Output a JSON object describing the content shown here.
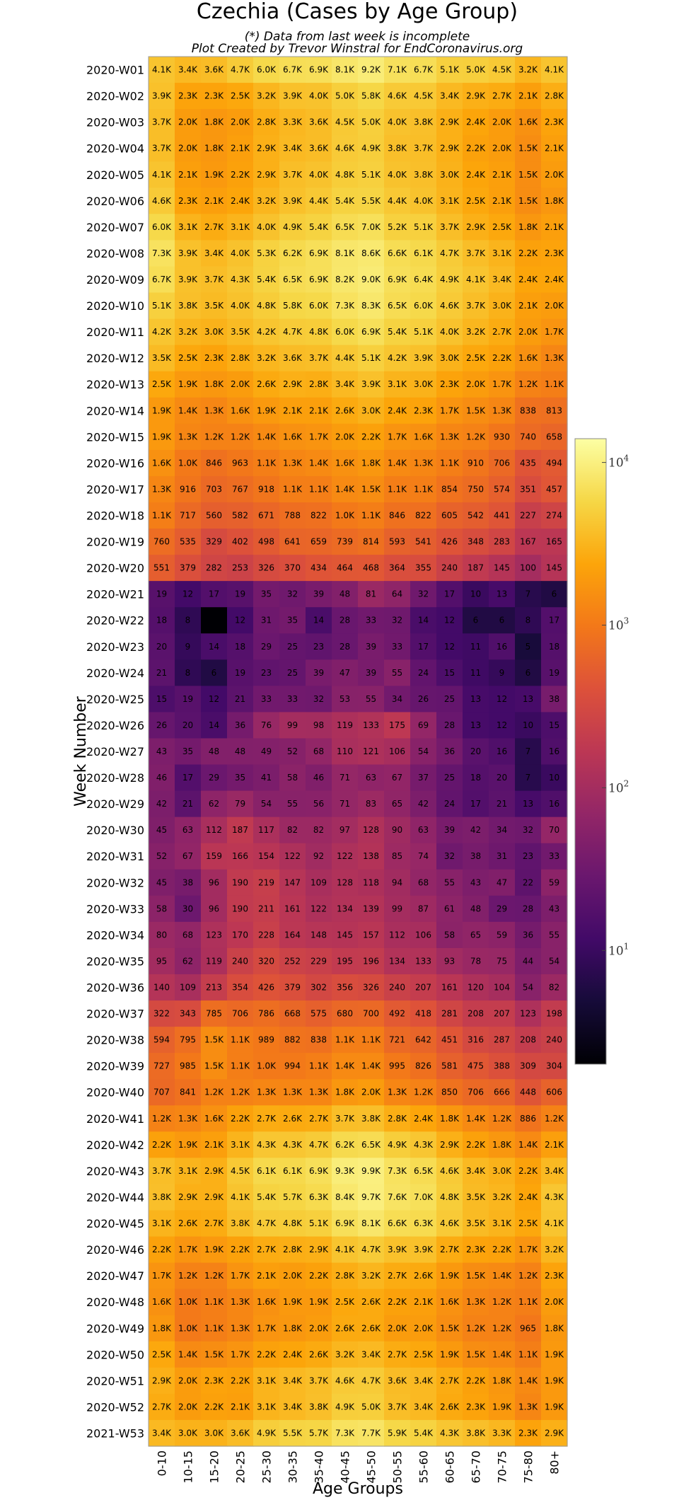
{
  "chart_data": {
    "type": "heatmap",
    "title": "Czechia (Cases by Age Group)",
    "subtitle_lines": [
      "(*) Data from last week is incomplete",
      "Plot Created by Trevor Winstral for EndCoronavirus.org"
    ],
    "xlabel": "Age Groups",
    "ylabel": "Week Number",
    "color_scale": "log",
    "colormap": "inferno",
    "colorbar_ticks": [
      "10^1",
      "10^2",
      "10^3",
      "10^4"
    ],
    "colorbar_range": [
      2,
      14000
    ],
    "x_categories": [
      "0-10",
      "10-15",
      "15-20",
      "20-25",
      "25-30",
      "30-35",
      "35-40",
      "40-45",
      "45-50",
      "50-55",
      "55-60",
      "60-65",
      "65-70",
      "70-75",
      "75-80",
      "80+"
    ],
    "y_categories": [
      "2020-W01",
      "2020-W02",
      "2020-W03",
      "2020-W04",
      "2020-W05",
      "2020-W06",
      "2020-W07",
      "2020-W08",
      "2020-W09",
      "2020-W10",
      "2020-W11",
      "2020-W12",
      "2020-W13",
      "2020-W14",
      "2020-W15",
      "2020-W16",
      "2020-W17",
      "2020-W18",
      "2020-W19",
      "2020-W20",
      "2020-W21",
      "2020-W22",
      "2020-W23",
      "2020-W24",
      "2020-W25",
      "2020-W26",
      "2020-W27",
      "2020-W28",
      "2020-W29",
      "2020-W30",
      "2020-W31",
      "2020-W32",
      "2020-W33",
      "2020-W34",
      "2020-W35",
      "2020-W36",
      "2020-W37",
      "2020-W38",
      "2020-W39",
      "2020-W40",
      "2020-W41",
      "2020-W42",
      "2020-W43",
      "2020-W44",
      "2020-W45",
      "2020-W46",
      "2020-W47",
      "2020-W48",
      "2020-W49",
      "2020-W50",
      "2020-W51",
      "2020-W52",
      "2021-W53"
    ],
    "labels": [
      [
        "4.1K",
        "3.4K",
        "3.6K",
        "4.7K",
        "6.0K",
        "6.7K",
        "6.9K",
        "8.1K",
        "9.2K",
        "7.1K",
        "6.7K",
        "5.1K",
        "5.0K",
        "4.5K",
        "3.2K",
        "4.1K"
      ],
      [
        "3.9K",
        "2.3K",
        "2.3K",
        "2.5K",
        "3.2K",
        "3.9K",
        "4.0K",
        "5.0K",
        "5.8K",
        "4.6K",
        "4.5K",
        "3.4K",
        "2.9K",
        "2.7K",
        "2.1K",
        "2.8K"
      ],
      [
        "3.7K",
        "2.0K",
        "1.8K",
        "2.0K",
        "2.8K",
        "3.3K",
        "3.6K",
        "4.5K",
        "5.0K",
        "4.0K",
        "3.8K",
        "2.9K",
        "2.4K",
        "2.0K",
        "1.6K",
        "2.3K"
      ],
      [
        "3.7K",
        "2.0K",
        "1.8K",
        "2.1K",
        "2.9K",
        "3.4K",
        "3.6K",
        "4.6K",
        "4.9K",
        "3.8K",
        "3.7K",
        "2.9K",
        "2.2K",
        "2.0K",
        "1.5K",
        "2.1K"
      ],
      [
        "4.1K",
        "2.1K",
        "1.9K",
        "2.2K",
        "2.9K",
        "3.7K",
        "4.0K",
        "4.8K",
        "5.1K",
        "4.0K",
        "3.8K",
        "3.0K",
        "2.4K",
        "2.1K",
        "1.5K",
        "2.0K"
      ],
      [
        "4.6K",
        "2.3K",
        "2.1K",
        "2.4K",
        "3.2K",
        "3.9K",
        "4.4K",
        "5.4K",
        "5.5K",
        "4.4K",
        "4.0K",
        "3.1K",
        "2.5K",
        "2.1K",
        "1.5K",
        "1.8K"
      ],
      [
        "6.0K",
        "3.1K",
        "2.7K",
        "3.1K",
        "4.0K",
        "4.9K",
        "5.4K",
        "6.5K",
        "7.0K",
        "5.2K",
        "5.1K",
        "3.7K",
        "2.9K",
        "2.5K",
        "1.8K",
        "2.1K"
      ],
      [
        "7.3K",
        "3.9K",
        "3.4K",
        "4.0K",
        "5.3K",
        "6.2K",
        "6.9K",
        "8.1K",
        "8.6K",
        "6.6K",
        "6.1K",
        "4.7K",
        "3.7K",
        "3.1K",
        "2.2K",
        "2.3K"
      ],
      [
        "6.7K",
        "3.9K",
        "3.7K",
        "4.3K",
        "5.4K",
        "6.5K",
        "6.9K",
        "8.2K",
        "9.0K",
        "6.9K",
        "6.4K",
        "4.9K",
        "4.1K",
        "3.4K",
        "2.4K",
        "2.4K"
      ],
      [
        "5.1K",
        "3.8K",
        "3.5K",
        "4.0K",
        "4.8K",
        "5.8K",
        "6.0K",
        "7.3K",
        "8.3K",
        "6.5K",
        "6.0K",
        "4.6K",
        "3.7K",
        "3.0K",
        "2.1K",
        "2.0K"
      ],
      [
        "4.2K",
        "3.2K",
        "3.0K",
        "3.5K",
        "4.2K",
        "4.7K",
        "4.8K",
        "6.0K",
        "6.9K",
        "5.4K",
        "5.1K",
        "4.0K",
        "3.2K",
        "2.7K",
        "2.0K",
        "1.7K"
      ],
      [
        "3.5K",
        "2.5K",
        "2.3K",
        "2.8K",
        "3.2K",
        "3.6K",
        "3.7K",
        "4.4K",
        "5.1K",
        "4.2K",
        "3.9K",
        "3.0K",
        "2.5K",
        "2.2K",
        "1.6K",
        "1.3K"
      ],
      [
        "2.5K",
        "1.9K",
        "1.8K",
        "2.0K",
        "2.6K",
        "2.9K",
        "2.8K",
        "3.4K",
        "3.9K",
        "3.1K",
        "3.0K",
        "2.3K",
        "2.0K",
        "1.7K",
        "1.2K",
        "1.1K"
      ],
      [
        "1.9K",
        "1.4K",
        "1.3K",
        "1.6K",
        "1.9K",
        "2.1K",
        "2.1K",
        "2.6K",
        "3.0K",
        "2.4K",
        "2.3K",
        "1.7K",
        "1.5K",
        "1.3K",
        "838",
        "813"
      ],
      [
        "1.9K",
        "1.3K",
        "1.2K",
        "1.2K",
        "1.4K",
        "1.6K",
        "1.7K",
        "2.0K",
        "2.2K",
        "1.7K",
        "1.6K",
        "1.3K",
        "1.2K",
        "930",
        "740",
        "658"
      ],
      [
        "1.6K",
        "1.0K",
        "846",
        "963",
        "1.1K",
        "1.3K",
        "1.4K",
        "1.6K",
        "1.8K",
        "1.4K",
        "1.3K",
        "1.1K",
        "910",
        "706",
        "435",
        "494"
      ],
      [
        "1.3K",
        "916",
        "703",
        "767",
        "918",
        "1.1K",
        "1.1K",
        "1.4K",
        "1.5K",
        "1.1K",
        "1.1K",
        "854",
        "750",
        "574",
        "351",
        "457"
      ],
      [
        "1.1K",
        "717",
        "560",
        "582",
        "671",
        "788",
        "822",
        "1.0K",
        "1.1K",
        "846",
        "822",
        "605",
        "542",
        "441",
        "227",
        "274"
      ],
      [
        "760",
        "535",
        "329",
        "402",
        "498",
        "641",
        "659",
        "739",
        "814",
        "593",
        "541",
        "426",
        "348",
        "283",
        "167",
        "165"
      ],
      [
        "551",
        "379",
        "282",
        "253",
        "326",
        "370",
        "434",
        "464",
        "468",
        "364",
        "355",
        "240",
        "187",
        "145",
        "100",
        "145"
      ],
      [
        "19",
        "12",
        "17",
        "19",
        "35",
        "32",
        "39",
        "48",
        "81",
        "64",
        "32",
        "17",
        "10",
        "13",
        "7",
        "6"
      ],
      [
        "18",
        "8",
        "",
        "12",
        "31",
        "35",
        "14",
        "28",
        "33",
        "32",
        "14",
        "12",
        "6",
        "6",
        "8",
        "17"
      ],
      [
        "20",
        "9",
        "14",
        "18",
        "29",
        "25",
        "23",
        "28",
        "39",
        "33",
        "17",
        "12",
        "11",
        "16",
        "5",
        "18"
      ],
      [
        "21",
        "8",
        "6",
        "19",
        "23",
        "25",
        "39",
        "47",
        "39",
        "55",
        "24",
        "15",
        "11",
        "9",
        "6",
        "19"
      ],
      [
        "15",
        "19",
        "12",
        "21",
        "33",
        "33",
        "32",
        "53",
        "55",
        "34",
        "26",
        "25",
        "13",
        "12",
        "13",
        "38"
      ],
      [
        "26",
        "20",
        "14",
        "36",
        "76",
        "99",
        "98",
        "119",
        "133",
        "175",
        "69",
        "28",
        "13",
        "12",
        "10",
        "15"
      ],
      [
        "43",
        "35",
        "48",
        "48",
        "49",
        "52",
        "68",
        "110",
        "121",
        "106",
        "54",
        "36",
        "20",
        "16",
        "7",
        "16"
      ],
      [
        "46",
        "17",
        "29",
        "35",
        "41",
        "58",
        "46",
        "71",
        "63",
        "67",
        "37",
        "25",
        "18",
        "20",
        "7",
        "10"
      ],
      [
        "42",
        "21",
        "62",
        "79",
        "54",
        "55",
        "56",
        "71",
        "83",
        "65",
        "42",
        "24",
        "17",
        "21",
        "13",
        "16"
      ],
      [
        "45",
        "63",
        "112",
        "187",
        "117",
        "82",
        "82",
        "97",
        "128",
        "90",
        "63",
        "39",
        "42",
        "34",
        "32",
        "70"
      ],
      [
        "52",
        "67",
        "159",
        "166",
        "154",
        "122",
        "92",
        "122",
        "138",
        "85",
        "74",
        "32",
        "38",
        "31",
        "23",
        "33"
      ],
      [
        "45",
        "38",
        "96",
        "190",
        "219",
        "147",
        "109",
        "128",
        "118",
        "94",
        "68",
        "55",
        "43",
        "47",
        "22",
        "59"
      ],
      [
        "58",
        "30",
        "96",
        "190",
        "211",
        "161",
        "122",
        "134",
        "139",
        "99",
        "87",
        "61",
        "48",
        "29",
        "28",
        "43"
      ],
      [
        "80",
        "68",
        "123",
        "170",
        "228",
        "164",
        "148",
        "145",
        "157",
        "112",
        "106",
        "58",
        "65",
        "59",
        "36",
        "55"
      ],
      [
        "95",
        "62",
        "119",
        "240",
        "320",
        "252",
        "229",
        "195",
        "196",
        "134",
        "133",
        "93",
        "78",
        "75",
        "44",
        "54"
      ],
      [
        "140",
        "109",
        "213",
        "354",
        "426",
        "379",
        "302",
        "356",
        "326",
        "240",
        "207",
        "161",
        "120",
        "104",
        "54",
        "82"
      ],
      [
        "322",
        "343",
        "785",
        "706",
        "786",
        "668",
        "575",
        "680",
        "700",
        "492",
        "418",
        "281",
        "208",
        "207",
        "123",
        "198"
      ],
      [
        "594",
        "795",
        "1.5K",
        "1.1K",
        "989",
        "882",
        "838",
        "1.1K",
        "1.1K",
        "721",
        "642",
        "451",
        "316",
        "287",
        "208",
        "240"
      ],
      [
        "727",
        "985",
        "1.5K",
        "1.1K",
        "1.0K",
        "994",
        "1.1K",
        "1.4K",
        "1.4K",
        "995",
        "826",
        "581",
        "475",
        "388",
        "309",
        "304"
      ],
      [
        "707",
        "841",
        "1.2K",
        "1.2K",
        "1.3K",
        "1.3K",
        "1.3K",
        "1.8K",
        "2.0K",
        "1.3K",
        "1.2K",
        "850",
        "706",
        "666",
        "448",
        "606"
      ],
      [
        "1.2K",
        "1.3K",
        "1.6K",
        "2.2K",
        "2.7K",
        "2.6K",
        "2.7K",
        "3.7K",
        "3.8K",
        "2.8K",
        "2.4K",
        "1.8K",
        "1.4K",
        "1.2K",
        "886",
        "1.2K"
      ],
      [
        "2.2K",
        "1.9K",
        "2.1K",
        "3.1K",
        "4.3K",
        "4.3K",
        "4.7K",
        "6.2K",
        "6.5K",
        "4.9K",
        "4.3K",
        "2.9K",
        "2.2K",
        "1.8K",
        "1.4K",
        "2.1K"
      ],
      [
        "3.7K",
        "3.1K",
        "2.9K",
        "4.5K",
        "6.1K",
        "6.1K",
        "6.9K",
        "9.3K",
        "9.9K",
        "7.3K",
        "6.5K",
        "4.6K",
        "3.4K",
        "3.0K",
        "2.2K",
        "3.4K"
      ],
      [
        "3.8K",
        "2.9K",
        "2.9K",
        "4.1K",
        "5.4K",
        "5.7K",
        "6.3K",
        "8.4K",
        "9.7K",
        "7.6K",
        "7.0K",
        "4.8K",
        "3.5K",
        "3.2K",
        "2.4K",
        "4.3K"
      ],
      [
        "3.1K",
        "2.6K",
        "2.7K",
        "3.8K",
        "4.7K",
        "4.8K",
        "5.1K",
        "6.9K",
        "8.1K",
        "6.6K",
        "6.3K",
        "4.6K",
        "3.5K",
        "3.1K",
        "2.5K",
        "4.1K"
      ],
      [
        "2.2K",
        "1.7K",
        "1.9K",
        "2.2K",
        "2.7K",
        "2.8K",
        "2.9K",
        "4.1K",
        "4.7K",
        "3.9K",
        "3.9K",
        "2.7K",
        "2.3K",
        "2.2K",
        "1.7K",
        "3.2K"
      ],
      [
        "1.7K",
        "1.2K",
        "1.2K",
        "1.7K",
        "2.1K",
        "2.0K",
        "2.2K",
        "2.8K",
        "3.2K",
        "2.7K",
        "2.6K",
        "1.9K",
        "1.5K",
        "1.4K",
        "1.2K",
        "2.3K"
      ],
      [
        "1.6K",
        "1.0K",
        "1.1K",
        "1.3K",
        "1.6K",
        "1.9K",
        "1.9K",
        "2.5K",
        "2.6K",
        "2.2K",
        "2.1K",
        "1.6K",
        "1.3K",
        "1.2K",
        "1.1K",
        "2.0K"
      ],
      [
        "1.8K",
        "1.0K",
        "1.1K",
        "1.3K",
        "1.7K",
        "1.8K",
        "2.0K",
        "2.6K",
        "2.6K",
        "2.0K",
        "2.0K",
        "1.5K",
        "1.2K",
        "1.2K",
        "965",
        "1.8K"
      ],
      [
        "2.5K",
        "1.4K",
        "1.5K",
        "1.7K",
        "2.2K",
        "2.4K",
        "2.6K",
        "3.2K",
        "3.4K",
        "2.7K",
        "2.5K",
        "1.9K",
        "1.5K",
        "1.4K",
        "1.1K",
        "1.9K"
      ],
      [
        "2.9K",
        "2.0K",
        "2.3K",
        "2.2K",
        "3.1K",
        "3.4K",
        "3.7K",
        "4.6K",
        "4.7K",
        "3.6K",
        "3.4K",
        "2.7K",
        "2.2K",
        "1.8K",
        "1.4K",
        "1.9K"
      ],
      [
        "2.7K",
        "2.0K",
        "2.2K",
        "2.1K",
        "3.1K",
        "3.4K",
        "3.8K",
        "4.9K",
        "5.0K",
        "3.7K",
        "3.4K",
        "2.6K",
        "2.3K",
        "1.9K",
        "1.3K",
        "1.9K"
      ],
      [
        "3.4K",
        "3.0K",
        "3.0K",
        "3.6K",
        "4.9K",
        "5.5K",
        "5.7K",
        "7.3K",
        "7.7K",
        "5.9K",
        "5.4K",
        "4.3K",
        "3.8K",
        "3.3K",
        "2.3K",
        "2.9K"
      ]
    ]
  }
}
